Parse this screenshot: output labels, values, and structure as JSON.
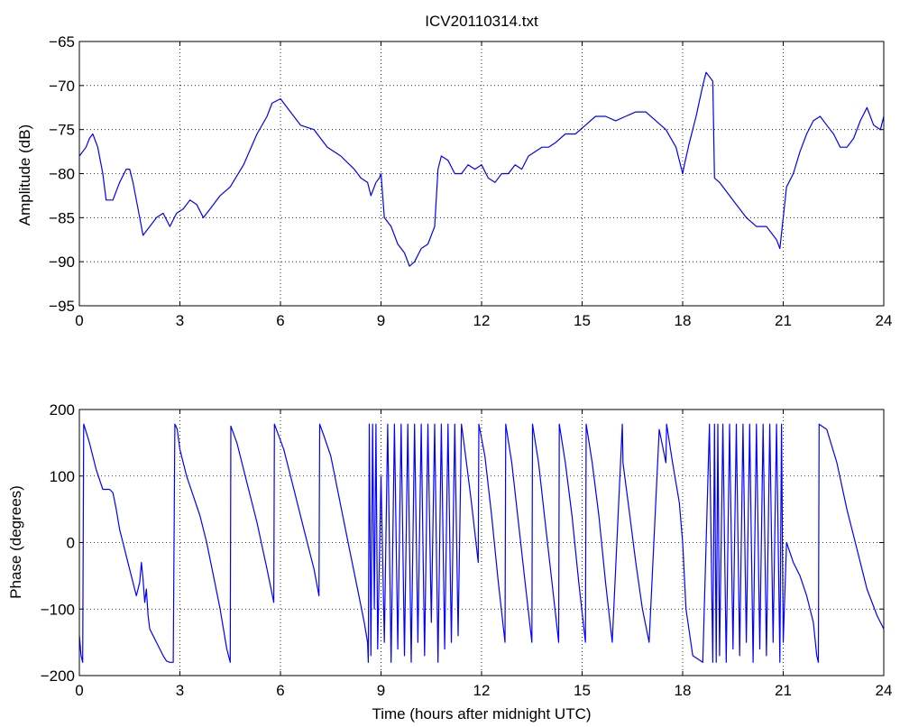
{
  "chart_data": [
    {
      "type": "line",
      "title": "ICV20110314.txt",
      "xlabel": "",
      "ylabel": "Amplitude (dB)",
      "xlim": [
        0,
        24
      ],
      "ylim": [
        -95,
        -65
      ],
      "xticks": [
        0,
        3,
        6,
        9,
        12,
        15,
        18,
        21,
        24
      ],
      "yticks": [
        -65,
        -70,
        -75,
        -80,
        -85,
        -90,
        -95
      ],
      "grid": true,
      "line_color": "#0000ff",
      "series": [
        {
          "x": [
            0.0,
            0.2,
            0.3,
            0.4,
            0.55,
            0.7,
            0.8,
            1.0,
            1.2,
            1.4,
            1.5,
            1.6,
            1.8,
            1.9,
            2.1,
            2.3,
            2.5,
            2.7,
            2.9,
            3.1,
            3.3,
            3.5,
            3.7,
            3.9,
            4.2,
            4.5,
            4.9,
            5.3,
            5.6,
            5.75,
            6.0,
            6.3,
            6.6,
            7.0,
            7.4,
            7.8,
            8.2,
            8.4,
            8.6,
            8.7,
            8.85,
            8.95,
            9.0,
            9.1,
            9.3,
            9.5,
            9.7,
            9.85,
            10.0,
            10.2,
            10.4,
            10.6,
            10.7,
            10.8,
            11.0,
            11.2,
            11.4,
            11.6,
            11.8,
            12.0,
            12.2,
            12.4,
            12.6,
            12.8,
            13.0,
            13.2,
            13.4,
            13.6,
            13.8,
            14.0,
            14.2,
            14.5,
            14.8,
            15.1,
            15.4,
            15.7,
            16.0,
            16.3,
            16.6,
            16.9,
            17.2,
            17.5,
            17.8,
            18.0,
            18.05,
            18.2,
            18.4,
            18.6,
            18.7,
            18.9,
            18.95,
            19.1,
            19.3,
            19.6,
            19.9,
            20.2,
            20.5,
            20.8,
            20.9,
            21.0,
            21.1,
            21.3,
            21.5,
            21.7,
            21.9,
            22.1,
            22.3,
            22.5,
            22.7,
            22.9,
            23.1,
            23.3,
            23.5,
            23.7,
            23.9,
            24.0
          ],
          "y": [
            -78,
            -77,
            -76,
            -75.5,
            -77,
            -80,
            -83,
            -83,
            -81,
            -79.5,
            -79.5,
            -81,
            -85,
            -87,
            -86,
            -85,
            -84.5,
            -86,
            -84.5,
            -84,
            -83,
            -83.5,
            -85,
            -84,
            -82.5,
            -81.5,
            -79,
            -75.5,
            -73.5,
            -72,
            -71.5,
            -73,
            -74.5,
            -75,
            -77,
            -78,
            -79.5,
            -80.5,
            -81,
            -82.5,
            -81,
            -80.5,
            -80,
            -85,
            -86,
            -88,
            -89,
            -90.5,
            -90,
            -88.5,
            -88,
            -86,
            -79.5,
            -78,
            -78.5,
            -80,
            -80,
            -79,
            -79.5,
            -79,
            -80.5,
            -81,
            -80,
            -80,
            -79,
            -79.5,
            -78,
            -77.5,
            -77,
            -77,
            -76.5,
            -75.5,
            -75.5,
            -74.5,
            -73.5,
            -73.5,
            -74,
            -73.5,
            -73,
            -73,
            -74,
            -75,
            -77,
            -80,
            -79,
            -76.5,
            -73.5,
            -70,
            -68.5,
            -69.5,
            -80.5,
            -81,
            -82,
            -83.5,
            -85,
            -86,
            -86,
            -87.5,
            -88.5,
            -85,
            -81.5,
            -80,
            -77.5,
            -75.5,
            -74,
            -73.5,
            -74.5,
            -75.5,
            -77,
            -77,
            -76,
            -74,
            -72.5,
            -74.5,
            -75,
            -73.5
          ]
        }
      ]
    },
    {
      "type": "line",
      "title": "",
      "xlabel": "Time (hours after midnight UTC)",
      "ylabel": "Phase (degrees)",
      "xlim": [
        0,
        24
      ],
      "ylim": [
        -200,
        200
      ],
      "xticks": [
        0,
        3,
        6,
        9,
        12,
        15,
        18,
        21,
        24
      ],
      "yticks": [
        200,
        100,
        0,
        -100,
        -200
      ],
      "grid": true,
      "line_color": "#0000ff",
      "series": [
        {
          "x": [
            0.0,
            0.05,
            0.1,
            0.13,
            0.15,
            0.3,
            0.5,
            0.7,
            0.9,
            1.0,
            1.1,
            1.2,
            1.3,
            1.4,
            1.55,
            1.7,
            1.8,
            1.85,
            1.9,
            1.95,
            2.0,
            2.05,
            2.1,
            2.2,
            2.3,
            2.4,
            2.5,
            2.6,
            2.7,
            2.8,
            2.85,
            2.88,
            2.92,
            3.0,
            3.2,
            3.4,
            3.6,
            3.8,
            4.0,
            4.2,
            4.4,
            4.5,
            4.52,
            4.7,
            5.0,
            5.3,
            5.6,
            5.8,
            5.82,
            6.1,
            6.4,
            6.7,
            7.0,
            7.15,
            7.17,
            7.3,
            7.5,
            7.7,
            7.9,
            8.1,
            8.3,
            8.5,
            8.6,
            8.62,
            8.65,
            8.7,
            8.75,
            8.8,
            8.85,
            8.9,
            9.0,
            9.1,
            9.2,
            9.3,
            9.4,
            9.5,
            9.6,
            9.7,
            9.8,
            9.9,
            10.0,
            10.1,
            10.2,
            10.3,
            10.4,
            10.5,
            10.6,
            10.7,
            10.8,
            10.9,
            11.0,
            11.1,
            11.2,
            11.3,
            11.4,
            11.5,
            11.7,
            11.9,
            11.92,
            12.1,
            12.3,
            12.5,
            12.7,
            12.72,
            12.9,
            13.1,
            13.3,
            13.5,
            13.52,
            13.7,
            13.9,
            14.1,
            14.3,
            14.32,
            14.5,
            14.7,
            14.9,
            15.1,
            15.12,
            15.3,
            15.5,
            15.7,
            15.9,
            16.2,
            16.22,
            16.4,
            16.6,
            16.8,
            17.0,
            17.3,
            17.5,
            17.52,
            17.7,
            17.9,
            18.0,
            18.1,
            18.3,
            18.6,
            18.8,
            18.9,
            18.95,
            19.0,
            19.05,
            19.1,
            19.2,
            19.3,
            19.4,
            19.5,
            19.6,
            19.7,
            19.8,
            19.9,
            20.0,
            20.1,
            20.2,
            20.3,
            20.4,
            20.5,
            20.6,
            20.7,
            20.8,
            20.9,
            20.95,
            21.0,
            21.1,
            21.3,
            21.5,
            21.7,
            21.9,
            22.0,
            22.05,
            22.07,
            22.3,
            22.6,
            22.9,
            23.2,
            23.5,
            23.8,
            24.0
          ],
          "y": [
            -140,
            -170,
            -180,
            178,
            175,
            150,
            110,
            80,
            80,
            75,
            50,
            20,
            0,
            -20,
            -50,
            -80,
            -60,
            -30,
            -55,
            -90,
            -70,
            -110,
            -130,
            -140,
            -150,
            -160,
            -170,
            -178,
            -180,
            -180,
            178,
            175,
            170,
            140,
            100,
            70,
            40,
            0,
            -50,
            -100,
            -160,
            -180,
            175,
            150,
            90,
            30,
            -40,
            -90,
            178,
            140,
            80,
            20,
            -40,
            -80,
            178,
            160,
            130,
            80,
            30,
            -20,
            -70,
            -120,
            -150,
            -180,
            178,
            -170,
            178,
            -100,
            178,
            -160,
            100,
            -150,
            178,
            -180,
            178,
            -160,
            178,
            -170,
            178,
            -180,
            178,
            -150,
            178,
            -170,
            178,
            -120,
            178,
            -180,
            178,
            -160,
            178,
            -150,
            178,
            -140,
            178,
            140,
            60,
            -30,
            178,
            130,
            40,
            -60,
            -150,
            178,
            120,
            30,
            -60,
            -150,
            178,
            120,
            30,
            -60,
            -150,
            178,
            120,
            40,
            -60,
            -150,
            178,
            120,
            40,
            -60,
            -150,
            178,
            120,
            50,
            -30,
            -100,
            -150,
            170,
            120,
            178,
            120,
            60,
            0,
            -100,
            -170,
            -180,
            178,
            -180,
            178,
            -180,
            178,
            -170,
            178,
            -180,
            178,
            -160,
            178,
            -170,
            178,
            -150,
            178,
            -180,
            178,
            -160,
            178,
            -170,
            178,
            -150,
            178,
            -180,
            178,
            -150,
            0,
            -30,
            -50,
            -80,
            -120,
            -170,
            -180,
            178,
            170,
            120,
            50,
            -10,
            -70,
            -110,
            -130
          ]
        }
      ]
    }
  ]
}
